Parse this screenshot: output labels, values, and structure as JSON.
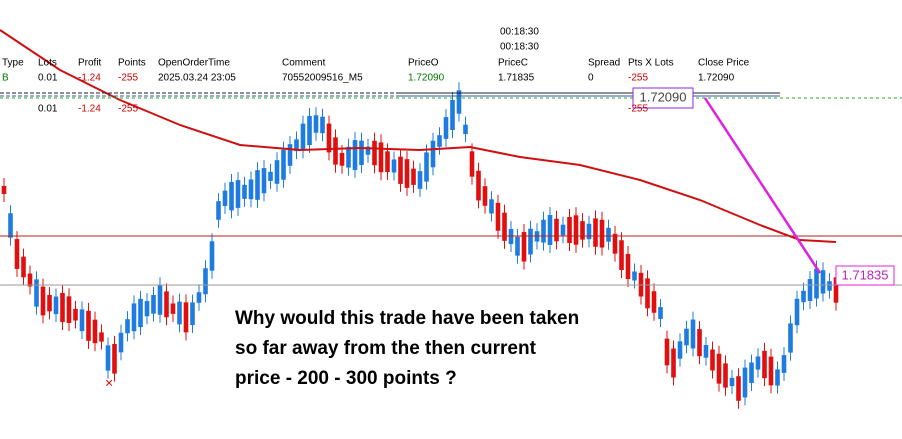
{
  "trade_panel": {
    "timers": [
      "00:18:30",
      "00:18:30"
    ],
    "headers": [
      "Type",
      "Lots",
      "Profit",
      "Points",
      "OpenOrderTime",
      "Comment",
      "PriceO",
      "PriceC",
      "Spread",
      "Pts X Lots",
      "Close Price"
    ],
    "row": [
      "B",
      "0.01",
      "-1.24",
      "-255",
      "2025.03.24 23:05",
      "70552009516_M5",
      "1.72090",
      "1.71835",
      "0",
      "-255",
      "1.72090"
    ],
    "summary": [
      "0.01",
      "-1.24",
      "-255"
    ]
  },
  "chart_labels": {
    "open_price": "1.72090",
    "close_price": "1.71835",
    "points": "-255"
  },
  "annotation": [
    "Why would this trade have been taken",
    "so far away from the then current",
    "price - 200 - 300 points ?"
  ]
}
